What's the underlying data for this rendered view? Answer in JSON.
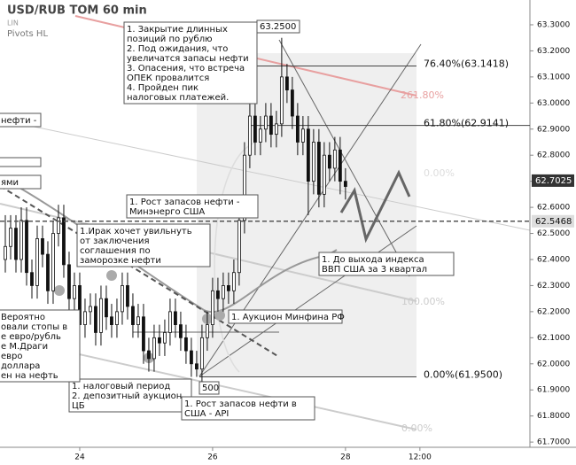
{
  "chart_data": {
    "type": "candlestick",
    "title": "USD/RUB TOM 60 min",
    "subtitle": "LIN",
    "indicator": "Pivots HL",
    "xlim": [
      0,
      99.7
    ],
    "ylim": [
      61.68,
      63.395
    ],
    "xticks": [
      {
        "value": 15,
        "label": "24"
      },
      {
        "value": 40,
        "label": "26"
      },
      {
        "value": 65,
        "label": "28"
      },
      {
        "value": 79,
        "label": "12:00"
      }
    ],
    "yticks": [
      {
        "value": 61.7,
        "label": "61.7000"
      },
      {
        "value": 61.8,
        "label": "61.8000"
      },
      {
        "value": 61.9,
        "label": "61.9000"
      },
      {
        "value": 62.0,
        "label": "62.0000"
      },
      {
        "value": 62.1,
        "label": "62.1000"
      },
      {
        "value": 62.2,
        "label": "62.2000"
      },
      {
        "value": 62.3,
        "label": "62.3000"
      },
      {
        "value": 62.4,
        "label": "62.4000"
      },
      {
        "value": 62.5,
        "label": "62.5000"
      },
      {
        "value": 62.6,
        "label": "62.6000"
      },
      {
        "value": 62.7,
        "label": "62.7000"
      },
      {
        "value": 62.8,
        "label": "62.8000"
      },
      {
        "value": 62.9,
        "label": "62.9000"
      },
      {
        "value": 63.0,
        "label": "63.0000"
      },
      {
        "value": 63.1,
        "label": "63.1000"
      },
      {
        "value": 63.2,
        "label": "63.2000"
      },
      {
        "value": 63.3,
        "label": "63.3000"
      }
    ],
    "x": [
      1,
      2,
      3,
      4,
      5,
      6,
      7,
      8,
      9,
      10,
      11,
      12,
      13,
      14,
      15,
      16,
      17,
      18,
      19,
      20,
      21,
      22,
      23,
      24,
      25,
      26,
      27,
      28,
      29,
      30,
      31,
      32,
      33,
      34,
      35,
      36,
      37,
      38,
      39,
      40,
      41,
      42,
      43,
      44,
      45,
      46,
      47,
      48,
      49,
      50,
      51,
      52,
      53,
      54,
      55,
      56,
      57,
      58,
      59,
      60,
      61,
      62,
      63,
      64,
      65
    ],
    "candles": [
      [
        62.4,
        62.57,
        62.35,
        62.45
      ],
      [
        62.45,
        62.57,
        62.4,
        62.52
      ],
      [
        62.52,
        62.57,
        62.35,
        62.4
      ],
      [
        62.4,
        62.6,
        62.35,
        62.55
      ],
      [
        62.55,
        62.6,
        62.3,
        62.35
      ],
      [
        62.35,
        62.4,
        62.25,
        62.3
      ],
      [
        62.3,
        62.53,
        62.25,
        62.48
      ],
      [
        62.48,
        62.53,
        62.37,
        62.42
      ],
      [
        62.42,
        62.47,
        62.23,
        62.28
      ],
      [
        62.28,
        62.55,
        62.23,
        62.5
      ],
      [
        62.5,
        62.61,
        62.45,
        62.56
      ],
      [
        62.56,
        62.61,
        62.33,
        62.38
      ],
      [
        62.38,
        62.43,
        62.2,
        62.25
      ],
      [
        62.25,
        62.35,
        62.2,
        62.3
      ],
      [
        62.3,
        62.35,
        62.1,
        62.15
      ],
      [
        62.15,
        62.25,
        62.1,
        62.2
      ],
      [
        62.2,
        62.27,
        62.15,
        62.22
      ],
      [
        62.22,
        62.27,
        62.07,
        62.12
      ],
      [
        62.12,
        62.3,
        62.07,
        62.25
      ],
      [
        62.25,
        62.3,
        62.13,
        62.18
      ],
      [
        62.18,
        62.23,
        62.1,
        62.15
      ],
      [
        62.15,
        62.25,
        62.1,
        62.2
      ],
      [
        62.2,
        62.35,
        62.15,
        62.3
      ],
      [
        62.3,
        62.35,
        62.17,
        62.22
      ],
      [
        62.22,
        62.27,
        62.1,
        62.15
      ],
      [
        62.15,
        62.23,
        62.1,
        62.18
      ],
      [
        62.18,
        62.23,
        62.0,
        62.05
      ],
      [
        62.05,
        62.1,
        61.97,
        62.02
      ],
      [
        62.02,
        62.15,
        61.97,
        62.1
      ],
      [
        62.1,
        62.15,
        62.03,
        62.08
      ],
      [
        62.08,
        62.17,
        62.03,
        62.12
      ],
      [
        62.12,
        62.25,
        62.07,
        62.2
      ],
      [
        62.2,
        62.25,
        62.1,
        62.15
      ],
      [
        62.15,
        62.2,
        62.05,
        62.1
      ],
      [
        62.1,
        62.15,
        62.0,
        62.05
      ],
      [
        62.05,
        62.1,
        61.95,
        62.0
      ],
      [
        62.0,
        62.05,
        61.95,
        61.98
      ],
      [
        61.98,
        62.15,
        61.93,
        62.1
      ],
      [
        62.1,
        62.2,
        62.05,
        62.15
      ],
      [
        62.15,
        62.33,
        62.1,
        62.28
      ],
      [
        62.28,
        62.33,
        62.2,
        62.25
      ],
      [
        62.25,
        62.35,
        62.2,
        62.3
      ],
      [
        62.3,
        62.35,
        62.23,
        62.28
      ],
      [
        62.28,
        62.4,
        62.23,
        62.35
      ],
      [
        62.35,
        62.6,
        62.3,
        62.55
      ],
      [
        62.55,
        62.85,
        62.5,
        62.8
      ],
      [
        62.8,
        63.0,
        62.75,
        62.95
      ],
      [
        62.95,
        63.0,
        62.8,
        62.85
      ],
      [
        62.85,
        62.95,
        62.8,
        62.9
      ],
      [
        62.9,
        63.0,
        62.85,
        62.95
      ],
      [
        62.95,
        63.0,
        62.83,
        62.88
      ],
      [
        62.88,
        62.97,
        62.83,
        62.92
      ],
      [
        62.92,
        63.25,
        62.87,
        63.1
      ],
      [
        63.1,
        63.15,
        63.0,
        63.05
      ],
      [
        63.05,
        63.1,
        62.9,
        62.95
      ],
      [
        62.95,
        63.0,
        62.8,
        62.85
      ],
      [
        62.85,
        62.95,
        62.8,
        62.9
      ],
      [
        62.9,
        62.95,
        62.57,
        62.7
      ],
      [
        62.7,
        62.9,
        62.65,
        62.85
      ],
      [
        62.85,
        62.9,
        62.6,
        62.65
      ],
      [
        62.65,
        62.85,
        62.6,
        62.8
      ],
      [
        62.8,
        62.85,
        62.7,
        62.75
      ],
      [
        62.75,
        62.87,
        62.7,
        62.82
      ],
      [
        62.82,
        62.87,
        62.65,
        62.7
      ],
      [
        62.7,
        62.75,
        62.63,
        62.68
      ]
    ],
    "levels": [
      {
        "label": "76.40%(63.1418)",
        "value": 63.1418
      },
      {
        "label": "61.80%(62.9141)",
        "value": 62.9141
      },
      {
        "label": "0.00%(61.9500)",
        "value": 61.95
      }
    ],
    "faded_labels": [
      "261.80%",
      "0.00%",
      "100.00%",
      "0.00%"
    ],
    "price_labels": [
      {
        "label": "62.7025",
        "value": 62.7025
      },
      {
        "label": "62.5468",
        "value": 62.5468
      }
    ],
    "peak_label": "63.2500",
    "low_label": "500",
    "annotations": [
      [
        "1. Закрытие длинных",
        "позиций по рублю",
        "2. Под ожидания, что",
        "увеличатся запасы нефти",
        "3. Опасения, что встреча",
        "ОПЕК провалится",
        "4. Пройден пик",
        "налоговых платежей."
      ],
      [
        "1. Рост запасов нефти  -",
        "Минэнерго США"
      ],
      [
        "1.Ирак хочет увильнуть",
        "от заключения",
        "соглашения по",
        "заморозке нефти"
      ],
      [
        "1. Аукцион Минфина РФ"
      ],
      [
        "1. До выхода индекса",
        "ВВП США за 3 квартал"
      ],
      [
        "1. налоговый период",
        "2. депозитный аукцион",
        "ЦБ"
      ],
      [
        "1. Рост запасов нефти в",
        "США - API"
      ],
      [
        "Вероятно",
        "овали стопы в",
        "е евро/рубль",
        "е М.Драги",
        " евро",
        " доллара",
        "ен на нефть"
      ],
      [
        "нефти -"
      ],
      [
        "ями"
      ]
    ]
  }
}
